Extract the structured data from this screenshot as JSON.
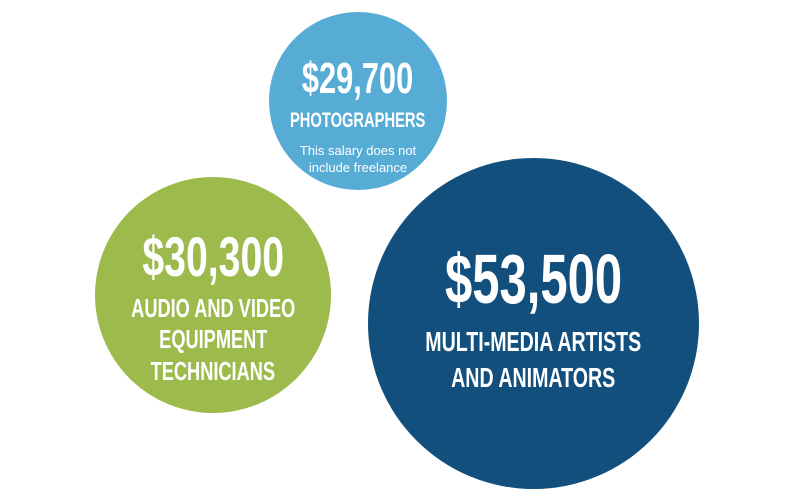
{
  "chart_data": {
    "type": "bubble",
    "background": "#FFFFFF",
    "text_color": "#FFFFFF",
    "legend": "none",
    "points": [
      {
        "label": "Photographers",
        "value": 29700,
        "value_text": "$29,700",
        "note": "This salary does not include freelance",
        "color": "#57ACD6",
        "radius_px": 89
      },
      {
        "label": "Audio and Video Equipment Technicians",
        "value": 30300,
        "value_text": "$30,300",
        "note": "",
        "color": "#9DBA4C",
        "radius_px": 118
      },
      {
        "label": "Multi-Media Artists and Animators",
        "value": 53500,
        "value_text": "$53,500",
        "note": "",
        "color": "#124F7D",
        "radius_px": 165
      }
    ]
  },
  "bubbles": [
    {
      "salary": "$29,700",
      "label_lines": [
        "PHOTOGRAPHERS"
      ],
      "note_lines": [
        "This salary does not",
        "include freelance"
      ]
    },
    {
      "salary": "$30,300",
      "label_lines": [
        "AUDIO AND VIDEO",
        "EQUIPMENT",
        "TECHNICIANS"
      ]
    },
    {
      "salary": "$53,500",
      "label_lines": [
        "MULTI-MEDIA ARTISTS",
        "AND ANIMATORS"
      ]
    }
  ]
}
